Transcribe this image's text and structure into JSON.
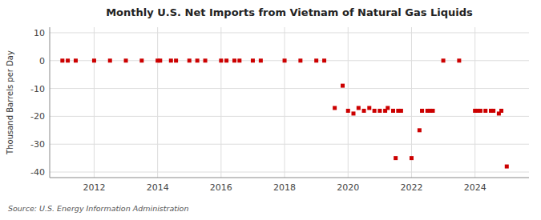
{
  "chart_data": {
    "type": "scatter",
    "title": "Monthly U.S. Net Imports from Vietnam of Natural Gas Liquids",
    "ylabel": "Thousand Barrels per Day",
    "source": "Source: U.S. Energy Information Administration",
    "color": "#cc0000",
    "marker": "square",
    "grid": true,
    "xlim": [
      2010.6,
      2025.7
    ],
    "xticks": [
      2012,
      2014,
      2016,
      2018,
      2020,
      2022,
      2024
    ],
    "ylim": [
      -42,
      12
    ],
    "yticks": [
      -40,
      -30,
      -20,
      -10,
      0,
      10
    ],
    "x": [
      2011.0,
      2011.17,
      2011.42,
      2012.0,
      2012.5,
      2013.0,
      2013.5,
      2014.0,
      2014.08,
      2014.42,
      2014.58,
      2015.0,
      2015.25,
      2015.5,
      2016.0,
      2016.17,
      2016.42,
      2016.58,
      2017.0,
      2017.25,
      2018.0,
      2018.5,
      2019.0,
      2019.25,
      2019.58,
      2019.83,
      2020.0,
      2020.17,
      2020.33,
      2020.5,
      2020.67,
      2020.83,
      2021.0,
      2021.17,
      2021.25,
      2021.42,
      2021.58,
      2021.67,
      2021.5,
      2022.0,
      2022.25,
      2022.33,
      2022.5,
      2022.58,
      2022.67,
      2023.0,
      2023.5,
      2024.0,
      2024.08,
      2024.17,
      2024.33,
      2024.5,
      2024.58,
      2024.75,
      2024.83,
      2025.0
    ],
    "values": [
      0,
      0,
      0,
      0,
      0,
      0,
      0,
      0,
      0,
      0,
      0,
      0,
      0,
      0,
      0,
      0,
      0,
      0,
      0,
      0,
      0,
      0,
      0,
      0,
      -17,
      -9,
      -18,
      -19,
      -17,
      -18,
      -17,
      -18,
      -18,
      -18,
      -17,
      -18,
      -18,
      -18,
      -35,
      -35,
      -25,
      -18,
      -18,
      -18,
      -18,
      0,
      0,
      -18,
      -18,
      -18,
      -18,
      -18,
      -18,
      -19,
      -18,
      -38
    ]
  }
}
